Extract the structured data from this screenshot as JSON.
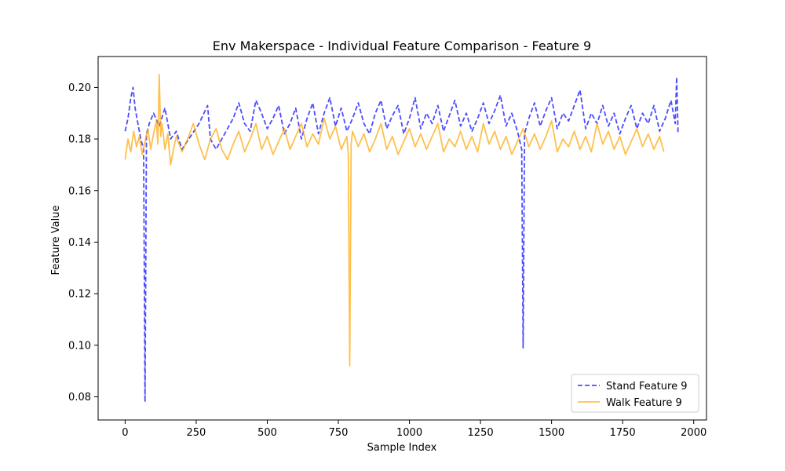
{
  "chart_data": {
    "type": "line",
    "title": "Env Makerspace - Individual Feature Comparison - Feature 9",
    "xlabel": "Sample Index",
    "ylabel": "Feature Value",
    "xlim": [
      -95,
      2045
    ],
    "ylim": [
      0.071,
      0.212
    ],
    "xticks": [
      0,
      250,
      500,
      750,
      1000,
      1250,
      1500,
      1750,
      2000
    ],
    "xtick_labels": [
      "0",
      "250",
      "500",
      "750",
      "1000",
      "1250",
      "1500",
      "1750",
      "2000"
    ],
    "yticks": [
      0.08,
      0.1,
      0.12,
      0.14,
      0.16,
      0.18,
      0.2
    ],
    "ytick_labels": [
      "0.08",
      "0.10",
      "0.12",
      "0.14",
      "0.16",
      "0.18",
      "0.20"
    ],
    "grid": false,
    "legend_position": "lower-right",
    "series": [
      {
        "name": "Stand Feature 9",
        "color": "#0000ff",
        "style": "dashed",
        "x": [
          0,
          10,
          20,
          28,
          35,
          45,
          55,
          65,
          70,
          75,
          85,
          100,
          120,
          140,
          160,
          180,
          200,
          230,
          260,
          290,
          300,
          320,
          350,
          380,
          400,
          420,
          440,
          460,
          480,
          500,
          520,
          540,
          560,
          580,
          600,
          620,
          640,
          660,
          680,
          700,
          720,
          740,
          760,
          780,
          800,
          820,
          840,
          860,
          880,
          900,
          920,
          940,
          960,
          980,
          1000,
          1020,
          1040,
          1060,
          1080,
          1100,
          1120,
          1140,
          1160,
          1180,
          1200,
          1220,
          1240,
          1260,
          1280,
          1300,
          1320,
          1340,
          1360,
          1380,
          1395,
          1400,
          1405,
          1420,
          1440,
          1460,
          1480,
          1500,
          1520,
          1540,
          1560,
          1580,
          1600,
          1620,
          1640,
          1660,
          1680,
          1700,
          1720,
          1740,
          1760,
          1780,
          1800,
          1820,
          1840,
          1860,
          1880,
          1900,
          1920,
          1935,
          1940,
          1945
        ],
        "y": [
          0.183,
          0.188,
          0.196,
          0.2,
          0.192,
          0.186,
          0.18,
          0.176,
          0.078,
          0.182,
          0.186,
          0.19,
          0.185,
          0.192,
          0.18,
          0.183,
          0.176,
          0.181,
          0.186,
          0.193,
          0.18,
          0.176,
          0.182,
          0.188,
          0.194,
          0.186,
          0.183,
          0.195,
          0.19,
          0.184,
          0.188,
          0.193,
          0.182,
          0.186,
          0.192,
          0.18,
          0.188,
          0.194,
          0.182,
          0.19,
          0.196,
          0.185,
          0.192,
          0.183,
          0.188,
          0.194,
          0.186,
          0.182,
          0.19,
          0.195,
          0.184,
          0.189,
          0.193,
          0.182,
          0.188,
          0.196,
          0.184,
          0.19,
          0.186,
          0.193,
          0.183,
          0.189,
          0.195,
          0.185,
          0.19,
          0.183,
          0.188,
          0.194,
          0.186,
          0.191,
          0.197,
          0.185,
          0.19,
          0.183,
          0.176,
          0.099,
          0.182,
          0.188,
          0.194,
          0.185,
          0.191,
          0.196,
          0.184,
          0.19,
          0.187,
          0.193,
          0.199,
          0.184,
          0.19,
          0.186,
          0.193,
          0.185,
          0.19,
          0.182,
          0.188,
          0.193,
          0.184,
          0.19,
          0.186,
          0.193,
          0.183,
          0.188,
          0.195,
          0.186,
          0.204,
          0.182
        ]
      },
      {
        "name": "Walk Feature 9",
        "color": "#ffa500",
        "style": "solid",
        "x": [
          0,
          10,
          20,
          30,
          40,
          50,
          60,
          70,
          80,
          90,
          100,
          110,
          115,
          120,
          125,
          130,
          140,
          150,
          160,
          170,
          180,
          200,
          220,
          240,
          260,
          280,
          300,
          320,
          340,
          360,
          380,
          400,
          420,
          440,
          460,
          480,
          500,
          520,
          540,
          560,
          580,
          600,
          620,
          640,
          660,
          680,
          700,
          720,
          740,
          760,
          780,
          785,
          790,
          795,
          800,
          820,
          840,
          860,
          880,
          900,
          920,
          940,
          960,
          980,
          1000,
          1020,
          1040,
          1060,
          1080,
          1100,
          1120,
          1140,
          1160,
          1180,
          1200,
          1220,
          1240,
          1260,
          1280,
          1300,
          1320,
          1340,
          1360,
          1380,
          1400,
          1420,
          1440,
          1460,
          1480,
          1500,
          1520,
          1540,
          1560,
          1580,
          1600,
          1620,
          1640,
          1660,
          1680,
          1700,
          1720,
          1740,
          1760,
          1780,
          1800,
          1820,
          1840,
          1860,
          1880,
          1895
        ],
        "y": [
          0.172,
          0.18,
          0.175,
          0.183,
          0.177,
          0.181,
          0.174,
          0.179,
          0.184,
          0.176,
          0.182,
          0.187,
          0.178,
          0.205,
          0.181,
          0.186,
          0.176,
          0.182,
          0.17,
          0.176,
          0.181,
          0.175,
          0.18,
          0.186,
          0.178,
          0.172,
          0.18,
          0.184,
          0.176,
          0.172,
          0.178,
          0.183,
          0.175,
          0.18,
          0.186,
          0.176,
          0.181,
          0.174,
          0.179,
          0.184,
          0.176,
          0.181,
          0.186,
          0.177,
          0.182,
          0.178,
          0.188,
          0.18,
          0.185,
          0.176,
          0.181,
          0.174,
          0.092,
          0.178,
          0.183,
          0.177,
          0.182,
          0.175,
          0.18,
          0.186,
          0.176,
          0.181,
          0.174,
          0.179,
          0.184,
          0.177,
          0.182,
          0.176,
          0.181,
          0.186,
          0.175,
          0.18,
          0.177,
          0.183,
          0.176,
          0.181,
          0.175,
          0.186,
          0.178,
          0.183,
          0.176,
          0.181,
          0.174,
          0.179,
          0.184,
          0.177,
          0.182,
          0.176,
          0.181,
          0.187,
          0.175,
          0.18,
          0.177,
          0.183,
          0.176,
          0.181,
          0.175,
          0.186,
          0.178,
          0.183,
          0.176,
          0.181,
          0.174,
          0.179,
          0.184,
          0.177,
          0.182,
          0.176,
          0.181,
          0.175
        ]
      }
    ]
  }
}
